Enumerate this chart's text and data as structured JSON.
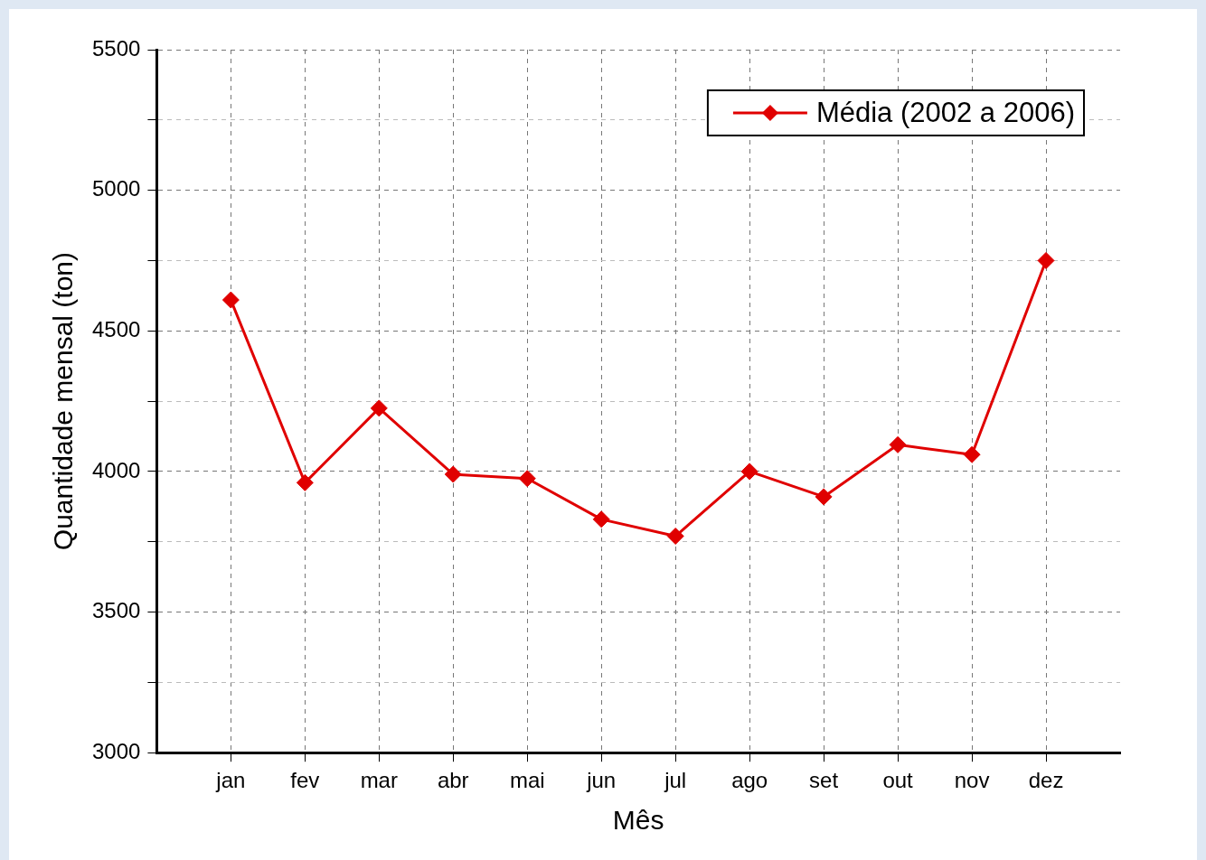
{
  "chart_data": {
    "type": "line",
    "xlabel": "Mês",
    "ylabel": "Quantidade mensal (ton)",
    "categories": [
      "jan",
      "fev",
      "mar",
      "abr",
      "mai",
      "jun",
      "jul",
      "ago",
      "set",
      "out",
      "nov",
      "dez"
    ],
    "series": [
      {
        "name": "Média (2002 a 2006)",
        "color": "#e00000",
        "values": [
          4610,
          3960,
          4225,
          3990,
          3975,
          3830,
          3770,
          4000,
          3910,
          4095,
          4060,
          4750
        ]
      }
    ],
    "ylim": [
      3000,
      5500
    ],
    "yticks": [
      3000,
      {
        "value": 3250,
        "label": null
      },
      3500,
      {
        "value": 3750,
        "label": null
      },
      4000,
      {
        "value": 4250,
        "label": null
      },
      4500,
      {
        "value": 4750,
        "label": null
      },
      5000,
      {
        "value": 5250,
        "label": null
      },
      5500
    ],
    "grid": true,
    "legend": "top right",
    "marker": "diamond",
    "line_style": "solid"
  }
}
